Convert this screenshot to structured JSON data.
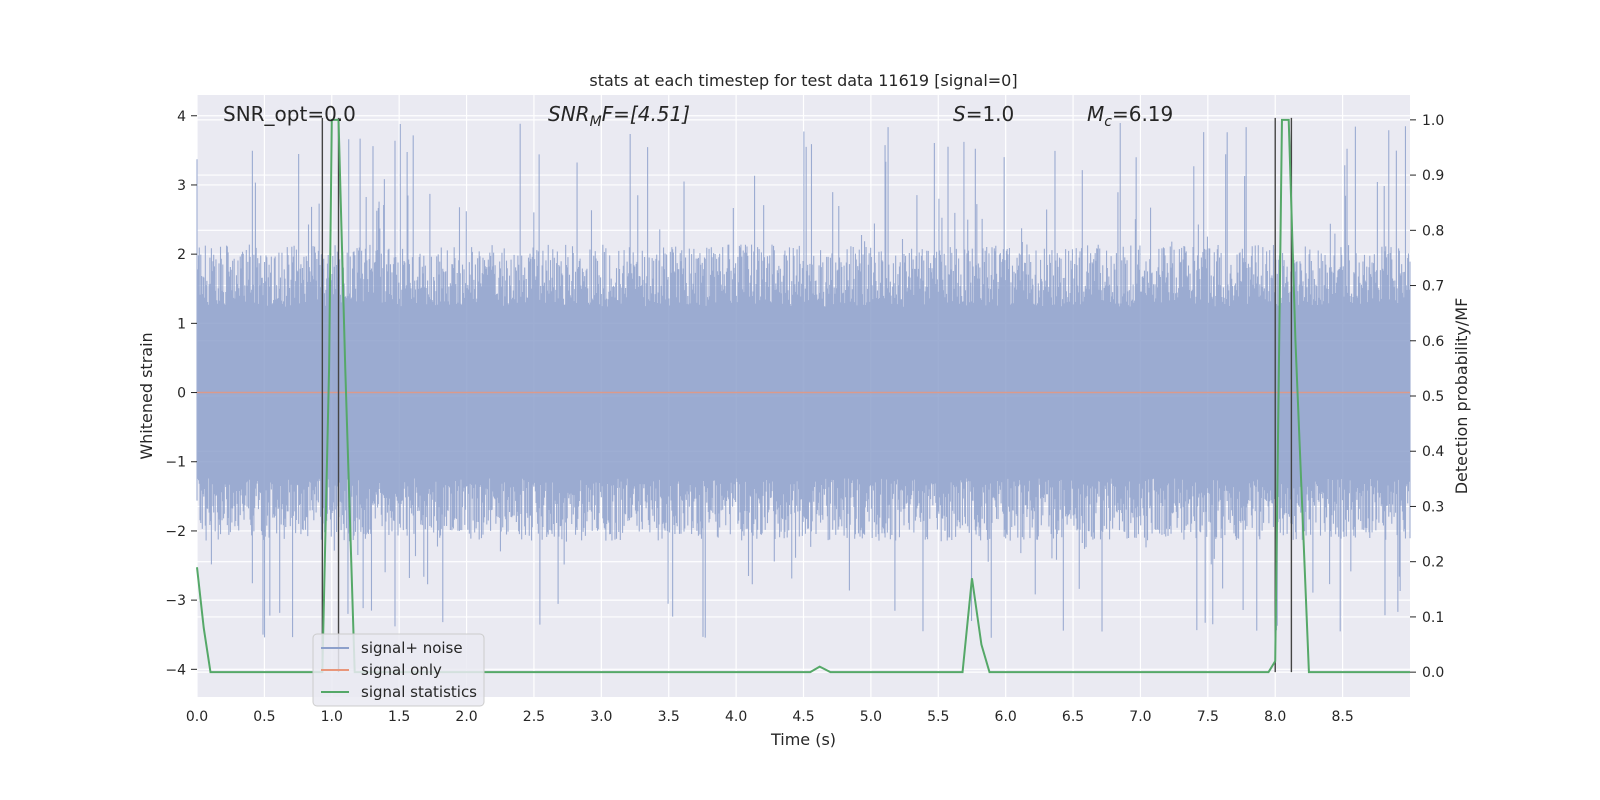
{
  "chart_data": {
    "type": "line",
    "title": "stats at each timestep for test data 11619 [signal=0]",
    "xlabel": "Time (s)",
    "ylabel": "Whitened strain",
    "y2label": "Detection probability/MF",
    "xlim": [
      0.0,
      9.0
    ],
    "ylim": [
      -4.4,
      4.3
    ],
    "y2lim": [
      -0.045,
      1.045
    ],
    "xticks": [
      "0.0",
      "0.5",
      "1.0",
      "1.5",
      "2.0",
      "2.5",
      "3.0",
      "3.5",
      "4.0",
      "4.5",
      "5.0",
      "5.5",
      "6.0",
      "6.5",
      "7.0",
      "7.5",
      "8.0",
      "8.5"
    ],
    "yticks": [
      "4",
      "3",
      "2",
      "1",
      "0",
      "−1",
      "−2",
      "−3",
      "−4"
    ],
    "y2ticks": [
      "1.0",
      "0.9",
      "0.8",
      "0.7",
      "0.6",
      "0.5",
      "0.4",
      "0.3",
      "0.2",
      "0.1",
      "0.0"
    ],
    "grid": true,
    "legend_position": "lower-left",
    "annotations": [
      {
        "id": "snr-opt",
        "label": "SNR_opt=0.0"
      },
      {
        "id": "snr-mf",
        "label": "SNR",
        "sub": "M",
        "suffix": "F=[4.51]",
        "italic": true
      },
      {
        "id": "s-stat",
        "label": "S",
        "suffix": "=1.0",
        "italic": true
      },
      {
        "id": "mchirp",
        "label": "M",
        "sub": "c",
        "suffix": "=6.19",
        "italic": true
      }
    ],
    "series": [
      {
        "name": "signal+ noise",
        "color": "#8da0cb",
        "kind": "noise",
        "envelope_mean": 1.6,
        "spike_max": 3.9,
        "spike_min": -3.6
      },
      {
        "name": "signal only",
        "color": "#e9967a",
        "kind": "flat",
        "value": 0.0
      },
      {
        "name": "signal statistics",
        "color": "#55a868",
        "axis": "right",
        "x": [
          0.0,
          0.05,
          0.1,
          0.15,
          0.93,
          0.98,
          1.0,
          1.05,
          1.1,
          1.17,
          4.5,
          4.55,
          4.62,
          4.7,
          5.68,
          5.75,
          5.82,
          5.88,
          7.95,
          8.0,
          8.05,
          8.1,
          8.15,
          8.25,
          9.0
        ],
        "y": [
          0.19,
          0.08,
          0.0,
          0.0,
          0.0,
          0.55,
          1.0,
          1.0,
          0.55,
          0.0,
          0.0,
          0.0,
          0.01,
          0.0,
          0.0,
          0.17,
          0.05,
          0.0,
          0.0,
          0.02,
          1.0,
          1.0,
          0.6,
          0.0,
          0.0
        ]
      },
      {
        "name": "peak markers",
        "color": "#444444",
        "kind": "vlines",
        "x": [
          0.93,
          1.05,
          8.0,
          8.12
        ],
        "y2_top": 1.0
      }
    ],
    "legend": [
      "signal+ noise",
      "signal only",
      "signal statistics"
    ]
  }
}
